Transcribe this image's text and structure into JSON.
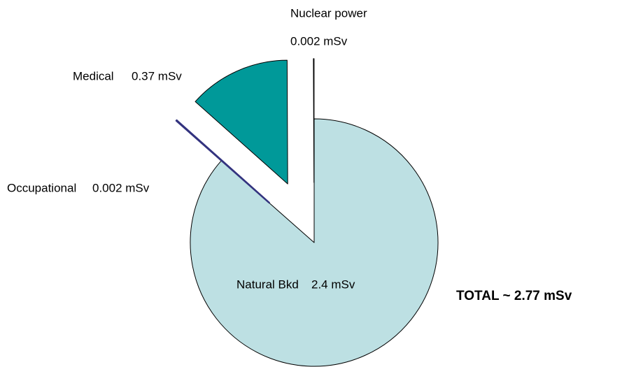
{
  "chart_data": {
    "type": "pie",
    "labels": [
      "Natural Bkd",
      "Occupational",
      "Medical",
      "Nuclear power"
    ],
    "values": [
      2.4,
      0.002,
      0.37,
      0.002
    ],
    "value_labels": [
      "2.4 mSv",
      "0.002 mSv",
      "0.37 mSv",
      "0.002 mSv"
    ],
    "colors": [
      "#bde0e3",
      "#33337f",
      "#009999",
      "#ffffff"
    ],
    "annotation": "TOTAL ~ 2.77 mSv"
  }
}
